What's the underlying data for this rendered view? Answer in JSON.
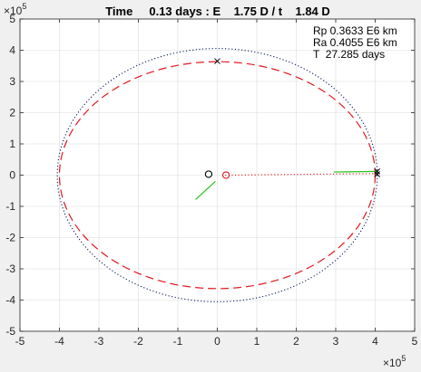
{
  "chart_data": {
    "type": "line",
    "title": "Time     0.13 days : E    1.75 D / t    1.84 D",
    "xlim": [
      -500000,
      500000
    ],
    "ylim": [
      -500000,
      500000
    ],
    "x_ticks": [
      -500000,
      -400000,
      -300000,
      -200000,
      -100000,
      0,
      100000,
      200000,
      300000,
      400000,
      500000
    ],
    "y_ticks": [
      -500000,
      -400000,
      -300000,
      -200000,
      -100000,
      0,
      100000,
      200000,
      300000,
      400000,
      500000
    ],
    "x_tick_labels": [
      "-5",
      "-4",
      "-3",
      "-2",
      "-1",
      "0",
      "1",
      "2",
      "3",
      "4",
      "5"
    ],
    "y_tick_labels": [
      "-5",
      "-4",
      "-3",
      "-2",
      "-1",
      "0",
      "1",
      "2",
      "3",
      "4",
      "5"
    ],
    "x_exponent_label": "×10",
    "y_exponent_label": "×10",
    "exponent_power": "5",
    "grid": true,
    "legend": [],
    "annotations": [
      "Rp 0.3633 E6 km",
      "Ra 0.4055 E6 km",
      "T  27.285 days"
    ],
    "series": [
      {
        "style": "dotted",
        "color": "#0b1f5c",
        "shape": "ellipse",
        "center": [
          0,
          0
        ],
        "semi_axes": [
          405500,
          405500
        ]
      },
      {
        "style": "dashed",
        "color": "#e0181e",
        "shape": "ellipse",
        "center": [
          0,
          0
        ],
        "semi_axes": [
          400000,
          363300
        ]
      },
      {
        "style": "dotted",
        "color": "#e0181e",
        "shape": "line",
        "points": [
          [
            20000,
            0
          ],
          [
            405000,
            5000
          ]
        ]
      },
      {
        "style": "solid",
        "color": "#27c21c",
        "shape": "line",
        "points": [
          [
            295000,
            10000
          ],
          [
            405000,
            12000
          ]
        ]
      },
      {
        "style": "solid",
        "color": "#27c21c",
        "shape": "line",
        "points": [
          [
            -55000,
            -78000
          ],
          [
            -5000,
            -20000
          ]
        ]
      }
    ],
    "markers": [
      {
        "name": "cross-top",
        "symbol": "x",
        "color": "#000000",
        "x": 0,
        "y": 365000
      },
      {
        "name": "cross-right-1",
        "symbol": "x",
        "color": "#000000",
        "x": 405000,
        "y": 12000
      },
      {
        "name": "cross-right-2",
        "symbol": "x",
        "color": "#000000",
        "x": 405000,
        "y": 3000
      },
      {
        "name": "earth-circle",
        "symbol": "o",
        "color": "#000000",
        "x": -22000,
        "y": 3000
      },
      {
        "name": "barycenter-circle",
        "symbol": "o",
        "color": "#e0181e",
        "x": 22000,
        "y": 0
      }
    ]
  }
}
